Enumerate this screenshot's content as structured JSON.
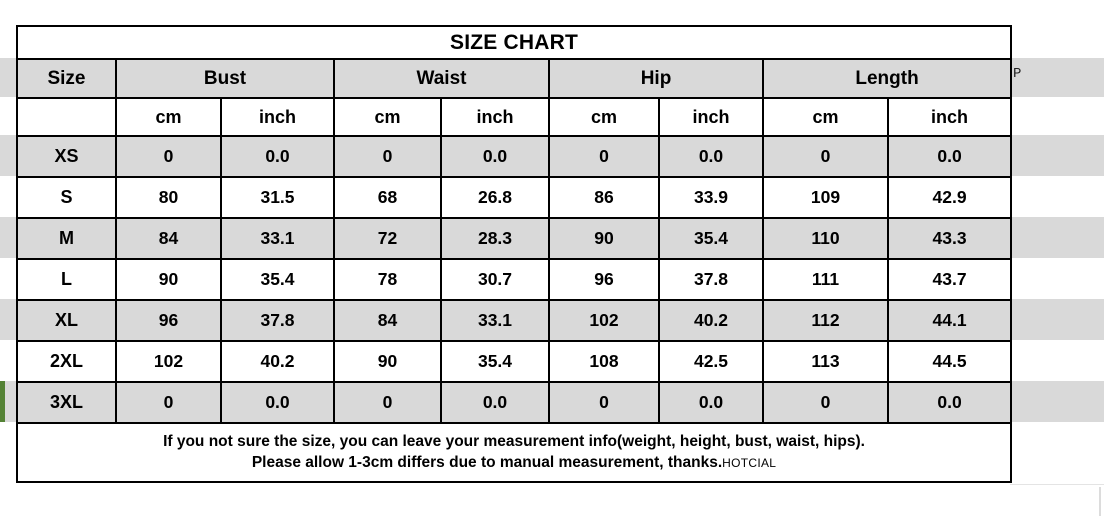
{
  "chart_data": {
    "type": "table",
    "title": "SIZE CHART",
    "column_groups": [
      "Size",
      "Bust",
      "Waist",
      "Hip",
      "Length"
    ],
    "unit_headers": [
      "cm",
      "inch",
      "cm",
      "inch",
      "cm",
      "inch",
      "cm",
      "inch"
    ],
    "rows": [
      {
        "size": "XS",
        "values": [
          "0",
          "0.0",
          "0",
          "0.0",
          "0",
          "0.0",
          "0",
          "0.0"
        ]
      },
      {
        "size": "S",
        "values": [
          "80",
          "31.5",
          "68",
          "26.8",
          "86",
          "33.9",
          "109",
          "42.9"
        ]
      },
      {
        "size": "M",
        "values": [
          "84",
          "33.1",
          "72",
          "28.3",
          "90",
          "35.4",
          "110",
          "43.3"
        ]
      },
      {
        "size": "L",
        "values": [
          "90",
          "35.4",
          "78",
          "30.7",
          "96",
          "37.8",
          "111",
          "43.7"
        ]
      },
      {
        "size": "XL",
        "values": [
          "96",
          "37.8",
          "84",
          "33.1",
          "102",
          "40.2",
          "112",
          "44.1"
        ]
      },
      {
        "size": "2XL",
        "values": [
          "102",
          "40.2",
          "90",
          "35.4",
          "108",
          "42.5",
          "113",
          "44.5"
        ]
      },
      {
        "size": "3XL",
        "values": [
          "0",
          "0.0",
          "0",
          "0.0",
          "0",
          "0.0",
          "0",
          "0.0"
        ]
      }
    ]
  },
  "footer": {
    "line1": "If you not sure the size, you can leave your measurement info(weight, height, bust, waist, hips).",
    "line2": "Please allow 1-3cm differs due to manual measurement, thanks.",
    "brand": "HOTCIAL"
  },
  "stray": {
    "p_label": "P"
  },
  "colors": {
    "row_gray": "#d9d9d9",
    "accent_green": "#548235",
    "border": "#000000",
    "background": "#ffffff"
  }
}
